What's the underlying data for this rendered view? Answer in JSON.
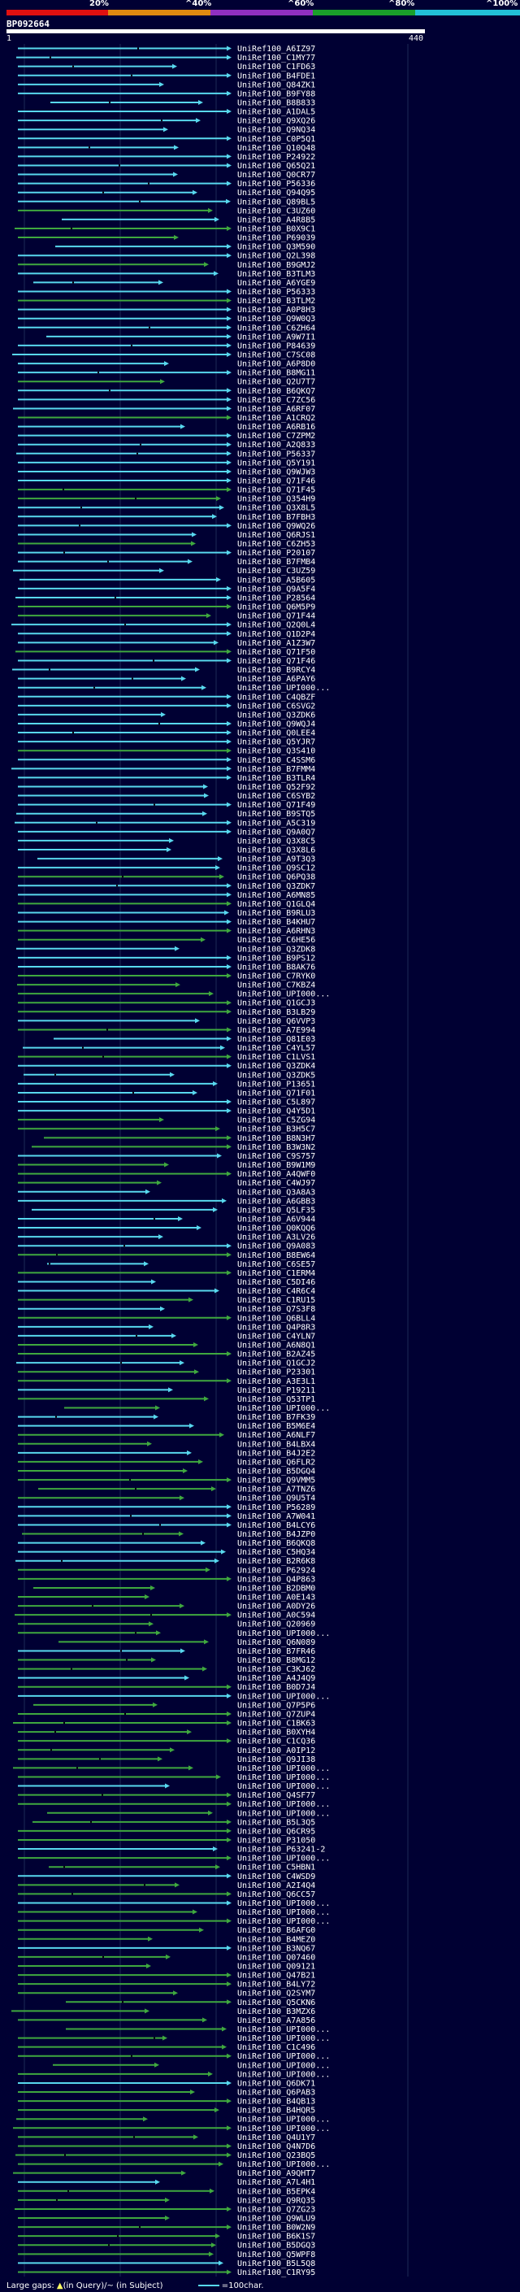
{
  "query": {
    "name": "BP092664",
    "start": "1",
    "end": "440"
  },
  "scale_labels": [
    "20%",
    "^40%",
    "^60%",
    "^80%",
    "^100%"
  ],
  "colors": {
    "identity_bands": [
      "#e01010",
      "#e08a10",
      "#9030c0",
      "#1aa02a",
      "#22c0d8"
    ],
    "hit_high": "#58d8ee",
    "hit_low": "#3fa83f",
    "tick_mark": "#000000"
  },
  "hit_ids": [
    "UniRef100_A6IZ97",
    "UniRef100_C1MY77",
    "UniRef100_C1FD63",
    "UniRef100_B4FDE1",
    "UniRef100_Q84ZK1",
    "UniRef100_B9FY88",
    "UniRef100_B8B833",
    "UniRef100_A1DAL5",
    "UniRef100_Q9XQ26",
    "UniRef100_Q9NQ34",
    "UniRef100_C0P5Q1",
    "UniRef100_Q10Q48",
    "UniRef100_P24922",
    "UniRef100_Q65Q21",
    "UniRef100_Q0CR77",
    "UniRef100_P56336",
    "UniRef100_Q94Q95",
    "UniRef100_Q89BL5",
    "UniRef100_C3UZ60",
    "UniRef100_A4R8B5",
    "UniRef100_B0X9C1",
    "UniRef100_P69039",
    "UniRef100_Q3M590",
    "UniRef100_Q2L398",
    "UniRef100_B9GMJ2",
    "UniRef100_B3TLM3",
    "UniRef100_A6YGE9",
    "UniRef100_P56333",
    "UniRef100_B3TLM2",
    "UniRef100_A0P8H3",
    "UniRef100_Q9W0Q3",
    "UniRef100_C6ZH64",
    "UniRef100_A9W7I1",
    "UniRef100_P84639",
    "UniRef100_C7SC08",
    "UniRef100_A6P8D0",
    "UniRef100_B8MG11",
    "UniRef100_Q2U7T7",
    "UniRef100_B6QKQ7",
    "UniRef100_C7ZC56",
    "UniRef100_A6RF07",
    "UniRef100_A1CRQ2",
    "UniRef100_A6RB16",
    "UniRef100_C7ZPM2",
    "UniRef100_A2Q833",
    "UniRef100_P56337",
    "UniRef100_Q5Y191",
    "UniRef100_Q9WJW3",
    "UniRef100_Q71F46",
    "UniRef100_Q71F45",
    "UniRef100_Q354H9",
    "UniRef100_Q3X8L5",
    "UniRef100_B7FBH3",
    "UniRef100_Q9WQ26",
    "UniRef100_Q6RJS1",
    "UniRef100_C6ZH53",
    "UniRef100_P20107",
    "UniRef100_B7FMB4",
    "UniRef100_C3UZ59",
    "UniRef100_A5B605",
    "UniRef100_Q9A5F4",
    "UniRef100_P28564",
    "UniRef100_Q6M5P9",
    "UniRef100_Q71F44",
    "UniRef100_Q2Q0L4",
    "UniRef100_Q1D2P4",
    "UniRef100_A1Z3W7",
    "UniRef100_Q71F50",
    "UniRef100_Q71F46",
    "UniRef100_B9RCY4",
    "UniRef100_A6PAY6",
    "UniRef100_UPI000...",
    "UniRef100_C4QBZF",
    "UniRef100_C6SVG2",
    "UniRef100_Q3ZDK6",
    "UniRef100_Q9WQJ4",
    "UniRef100_Q0LEE4",
    "UniRef100_Q5YJR7",
    "UniRef100_Q3S410",
    "UniRef100_C4SSM6",
    "UniRef100_B7FMM4",
    "UniRef100_B3TLR4",
    "UniRef100_Q52F92",
    "UniRef100_C6SYB2",
    "UniRef100_Q71F49",
    "UniRef100_B9STQ5",
    "UniRef100_A5C319",
    "UniRef100_Q9A0Q7",
    "UniRef100_Q3X8C5",
    "UniRef100_Q3X8L6",
    "UniRef100_A9T3Q3",
    "UniRef100_Q9SC12",
    "UniRef100_Q6PQ38",
    "UniRef100_Q3ZDK7",
    "UniRef100_A6MN85",
    "UniRef100_Q1GLQ4",
    "UniRef100_B9RLU3",
    "UniRef100_B4KHU7",
    "UniRef100_A6RHN3",
    "UniRef100_C6HE56",
    "UniRef100_Q3ZDK8",
    "UniRef100_B9PS12",
    "UniRef100_B8AK76",
    "UniRef100_C7RYK0",
    "UniRef100_C7KBZ4",
    "UniRef100_UPI000...",
    "UniRef100_Q1GCJ3",
    "UniRef100_B3LB29",
    "UniRef100_Q6VVP3",
    "UniRef100_A7E994",
    "UniRef100_Q81E03",
    "UniRef100_C4YL57",
    "UniRef100_C1LVS1",
    "UniRef100_Q3ZDK4",
    "UniRef100_Q3ZDK5",
    "UniRef100_P13651",
    "UniRef100_Q71F01",
    "UniRef100_C5L897",
    "UniRef100_Q4Y5D1",
    "UniRef100_C5ZG94",
    "UniRef100_B3H5C7",
    "UniRef100_B8N3H7",
    "UniRef100_B3W3N2",
    "UniRef100_C9S757",
    "UniRef100_B9W1M9",
    "UniRef100_A4QWF0",
    "UniRef100_C4WJ97",
    "UniRef100_Q3A8A3",
    "UniRef100_A6GBB3",
    "UniRef100_Q5LF35",
    "UniRef100_A6V944",
    "UniRef100_Q0KQQ6",
    "UniRef100_A3LV26",
    "UniRef100_Q9A083",
    "UniRef100_B8EW64",
    "UniRef100_C6SE57",
    "UniRef100_C1ERM4",
    "UniRef100_C5DI46",
    "UniRef100_C4R6C4",
    "UniRef100_C1RU15",
    "UniRef100_Q7S3F8",
    "UniRef100_Q6BLL4",
    "UniRef100_Q4P8R3",
    "UniRef100_C4YLN7",
    "UniRef100_A6N8Q1",
    "UniRef100_B2AZ45",
    "UniRef100_Q1GCJ2",
    "UniRef100_P23301",
    "UniRef100_A3E3L1",
    "UniRef100_P19211",
    "UniRef100_Q53TP1",
    "UniRef100_UPI000...",
    "UniRef100_B7FK39",
    "UniRef100_B5M6E4",
    "UniRef100_A6NLF7",
    "UniRef100_B4LBX4",
    "UniRef100_B4J2E2",
    "UniRef100_Q6FLR2",
    "UniRef100_B5DGQ4",
    "UniRef100_Q9VMM5",
    "UniRef100_A7TNZ6",
    "UniRef100_Q9U5T4",
    "UniRef100_P56289",
    "UniRef100_A7W041",
    "UniRef100_B4LCY6",
    "UniRef100_B4JZP0",
    "UniRef100_B6QKQ8",
    "UniRef100_C5HQ34",
    "UniRef100_B2R6K8",
    "UniRef100_P62924",
    "UniRef100_Q4P863",
    "UniRef100_B2DBM0",
    "UniRef100_A0E143",
    "UniRef100_A0DY26",
    "UniRef100_A0C594",
    "UniRef100_Q20969",
    "UniRef100_UPI000...",
    "UniRef100_Q6N089",
    "UniRef100_B7FR46",
    "UniRef100_B8MG12",
    "UniRef100_C3KJ62",
    "UniRef100_A4J4Q9",
    "UniRef100_B0D7J4",
    "UniRef100_UPI000...",
    "UniRef100_Q7P5P6",
    "UniRef100_Q7ZUP4",
    "UniRef100_C1BK63",
    "UniRef100_B0XYH4",
    "UniRef100_C1CQ36",
    "UniRef100_A0IP12",
    "UniRef100_Q9JI38",
    "UniRef100_UPI000...",
    "UniRef100_UPI000...",
    "UniRef100_UPI000...",
    "UniRef100_Q4SF77",
    "UniRef100_UPI000...",
    "UniRef100_UPI000...",
    "UniRef100_B5L3Q5",
    "UniRef100_Q6CR95",
    "UniRef100_P31050",
    "UniRef100_P63241-2",
    "UniRef100_UPI000...",
    "UniRef100_C5HBN1",
    "UniRef100_C4WSD9",
    "UniRef100_A2I4Q4",
    "UniRef100_Q6CC57",
    "UniRef100_UPI000...",
    "UniRef100_UPI000...",
    "UniRef100_UPI000...",
    "UniRef100_B6AFG0",
    "UniRef100_B4MEZ0",
    "UniRef100_B3NQ67",
    "UniRef100_Q07460",
    "UniRef100_Q09121",
    "UniRef100_Q47B21",
    "UniRef100_B4LY72",
    "UniRef100_Q2SYM7",
    "UniRef100_Q5CKN6",
    "UniRef100_B3MZX6",
    "UniRef100_A7A856",
    "UniRef100_UPI000...",
    "UniRef100_UPI000...",
    "UniRef100_C1C496",
    "UniRef100_UPI000...",
    "UniRef100_UPI000...",
    "UniRef100_UPI000...",
    "UniRef100_Q6DK71",
    "UniRef100_Q6PAB3",
    "UniRef100_B4QB13",
    "UniRef100_B4HQR5",
    "UniRef100_UPI000...",
    "UniRef100_UPI000...",
    "UniRef100_Q4U1Y7",
    "UniRef100_Q4N7D6",
    "UniRef100_Q23BQ5",
    "UniRef100_UPI000...",
    "UniRef100_A9QHT7",
    "UniRef100_A7L4H1",
    "UniRef100_B5EPK4",
    "UniRef100_Q9RQ35",
    "UniRef100_Q7ZG23",
    "UniRef100_Q9WLU9",
    "UniRef100_B0W2N9",
    "UniRef100_B6K1S7",
    "UniRef100_B5DGQ3",
    "UniRef100_Q5WPF8",
    "UniRef100_B5L5Q8",
    "UniRef100_C1RY95"
  ],
  "legend": {
    "prefix": "Large gaps:",
    "mark_glyph": "▲",
    "query_gap": "(in Query)/",
    "subject_gap": "~ (in Subject)",
    "scale_text": "=100char."
  }
}
